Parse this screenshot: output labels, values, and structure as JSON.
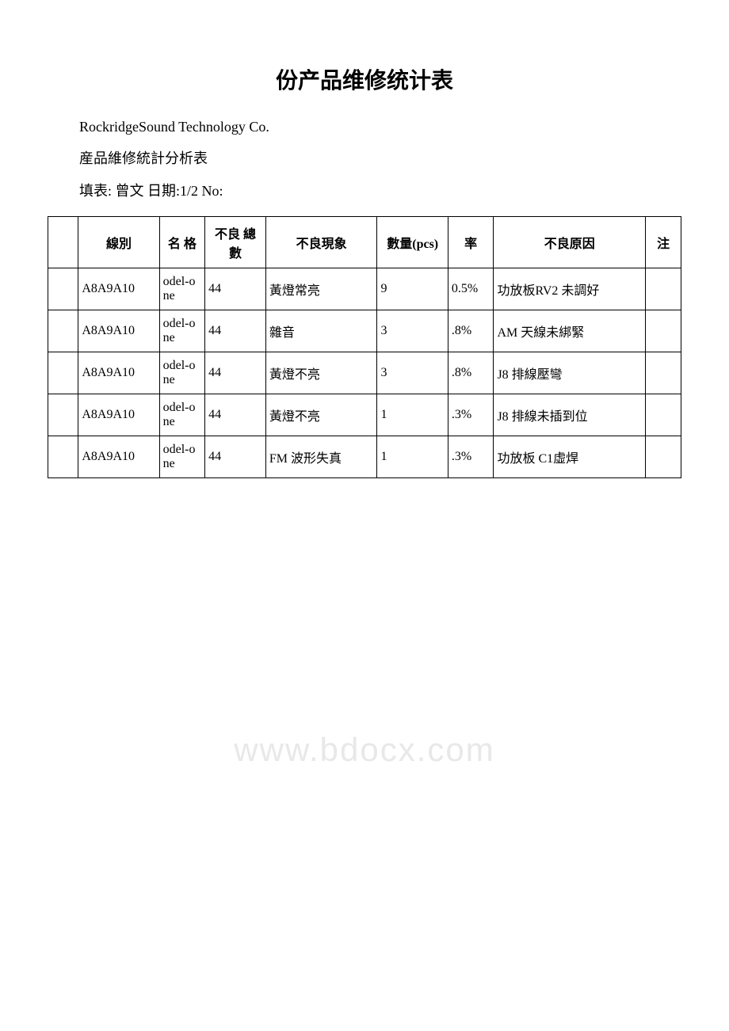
{
  "title": "份产品维修统计表",
  "company": "RockridgeSound Technology Co.",
  "subtitle": "産品維修統計分析表",
  "form_line": " 填表: 曾文 日期:1/2 No:",
  "watermark": "www.bdocx.com",
  "headers": {
    "col0": "",
    "col1": "線別",
    "col2": "名\n格",
    "col3": "不良\n總數",
    "col4": "不良現象",
    "col5": "數量(pcs)",
    "col6": "率",
    "col7": "不良原因",
    "col8": "注"
  },
  "rows": [
    {
      "c0": "",
      "c1": "A8A9A10",
      "c2": "odel-one",
      "c3": "44",
      "c4": "黃燈常亮",
      "c5": "9",
      "c6": "0.5%",
      "c7": "功放板RV2 未調好",
      "c8": ""
    },
    {
      "c0": "",
      "c1": "A8A9A10",
      "c2": "odel-one",
      "c3": "44",
      "c4": "雜音",
      "c5": "3",
      "c6": ".8%",
      "c7": "AM 天線未綁緊",
      "c8": ""
    },
    {
      "c0": "",
      "c1": "A8A9A10",
      "c2": "odel-one",
      "c3": "44",
      "c4": "黃燈不亮",
      "c5": "3",
      "c6": ".8%",
      "c7": "J8 排線壓彎",
      "c8": ""
    },
    {
      "c0": "",
      "c1": "A8A9A10",
      "c2": "odel-one",
      "c3": "44",
      "c4": "黃燈不亮",
      "c5": "1",
      "c6": ".3%",
      "c7": "J8 排線未插到位",
      "c8": ""
    },
    {
      "c0": "",
      "c1": "A8A9A10",
      "c2": "odel-one",
      "c3": "44",
      "c4": "FM 波形失真",
      "c5": "1",
      "c6": ".3%",
      "c7": "功放板 C1虛焊",
      "c8": ""
    }
  ],
  "styling": {
    "background_color": "#ffffff",
    "text_color": "#000000",
    "border_color": "#000000",
    "watermark_color": "#e8e8e8",
    "title_fontsize": 28,
    "body_fontsize": 16,
    "subtitle_fontsize": 18
  }
}
